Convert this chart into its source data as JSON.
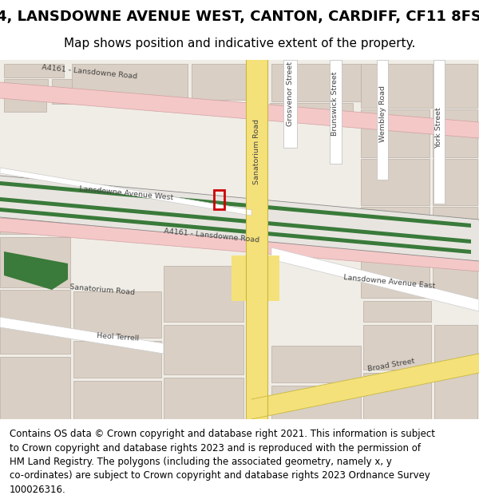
{
  "title": "4, LANSDOWNE AVENUE WEST, CANTON, CARDIFF, CF11 8FS",
  "subtitle": "Map shows position and indicative extent of the property.",
  "footer_lines": [
    "Contains OS data © Crown copyright and database right 2021. This information is subject",
    "to Crown copyright and database rights 2023 and is reproduced with the permission of",
    "HM Land Registry. The polygons (including the associated geometry, namely x, y",
    "co-ordinates) are subject to Crown copyright and database rights 2023 Ordnance Survey",
    "100026316."
  ],
  "map_bg": "#f0ede6",
  "pink_road_color": "#f5c8c8",
  "yellow_road_color": "#f5e17a",
  "railway_green": "#3a7a3a",
  "building_color": "#d9cfc4",
  "building_outline": "#b8afa5",
  "marker_color": "#cc0000",
  "figsize": [
    6.0,
    6.25
  ],
  "dpi": 100
}
